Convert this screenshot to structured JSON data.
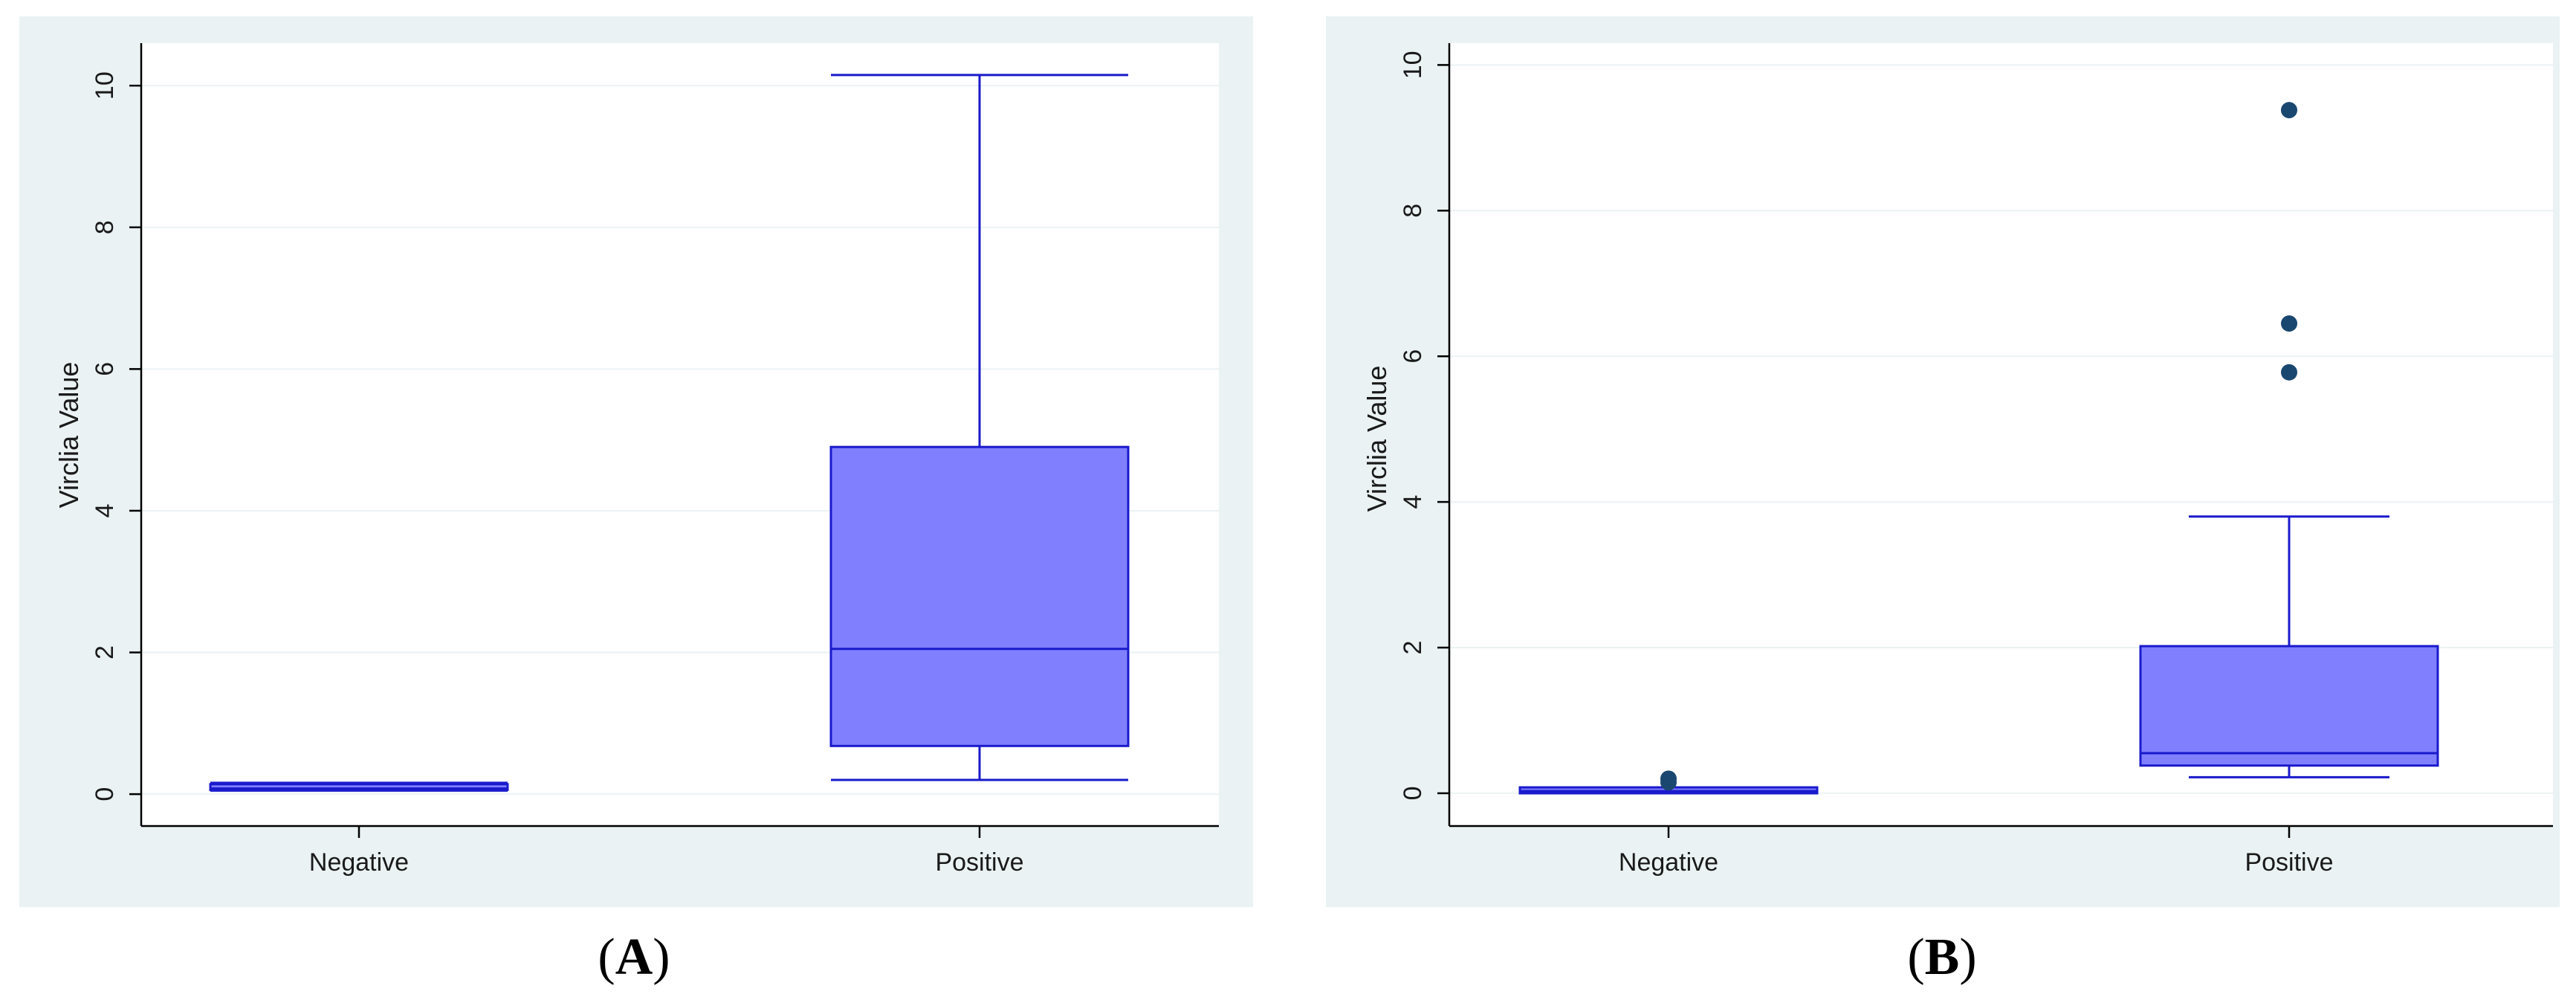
{
  "chart_data": [
    {
      "type": "box",
      "panel_label": "A",
      "title": "",
      "xlabel": "",
      "ylabel": "Virclia Value",
      "ylim": [
        -0.45,
        10.6
      ],
      "yticks": [
        0,
        2,
        4,
        6,
        8,
        10
      ],
      "ytick_labels": [
        "0",
        "2",
        "4",
        "6",
        "8",
        "10"
      ],
      "grid": true,
      "categories": [
        "Negative",
        "Positive"
      ],
      "boxes": [
        {
          "category": "Negative",
          "whisker_low": 0.05,
          "q1": 0.06,
          "median": 0.08,
          "q3": 0.14,
          "whisker_high": 0.16,
          "outliers": []
        },
        {
          "category": "Positive",
          "whisker_low": 0.2,
          "q1": 0.68,
          "median": 2.05,
          "q3": 4.9,
          "whisker_high": 10.15,
          "outliers": []
        }
      ]
    },
    {
      "type": "box",
      "panel_label": "B",
      "title": "",
      "xlabel": "",
      "ylabel": "Virclia Value",
      "ylim": [
        -0.45,
        10.3
      ],
      "yticks": [
        0,
        2,
        4,
        6,
        8,
        10
      ],
      "ytick_labels": [
        "0",
        "2",
        "4",
        "6",
        "8",
        "10"
      ],
      "grid": true,
      "categories": [
        "Negative",
        "Positive"
      ],
      "boxes": [
        {
          "category": "Negative",
          "whisker_low": 0.01,
          "q1": 0.02,
          "median": 0.03,
          "q3": 0.06,
          "whisker_high": 0.07,
          "outliers": [
            0.15,
            0.2
          ]
        },
        {
          "category": "Positive",
          "whisker_low": 0.22,
          "q1": 0.38,
          "median": 0.55,
          "q3": 2.02,
          "whisker_high": 3.8,
          "outliers": [
            5.78,
            6.45,
            9.38
          ]
        }
      ]
    }
  ],
  "style": {
    "panel_background": "#eaf2f3",
    "plot_background": "#ffffff",
    "box_fill": "#8080ff",
    "box_stroke": "#1a1acc",
    "outlier_color": "#1a476f",
    "grid_color": "#eaf2f3"
  }
}
